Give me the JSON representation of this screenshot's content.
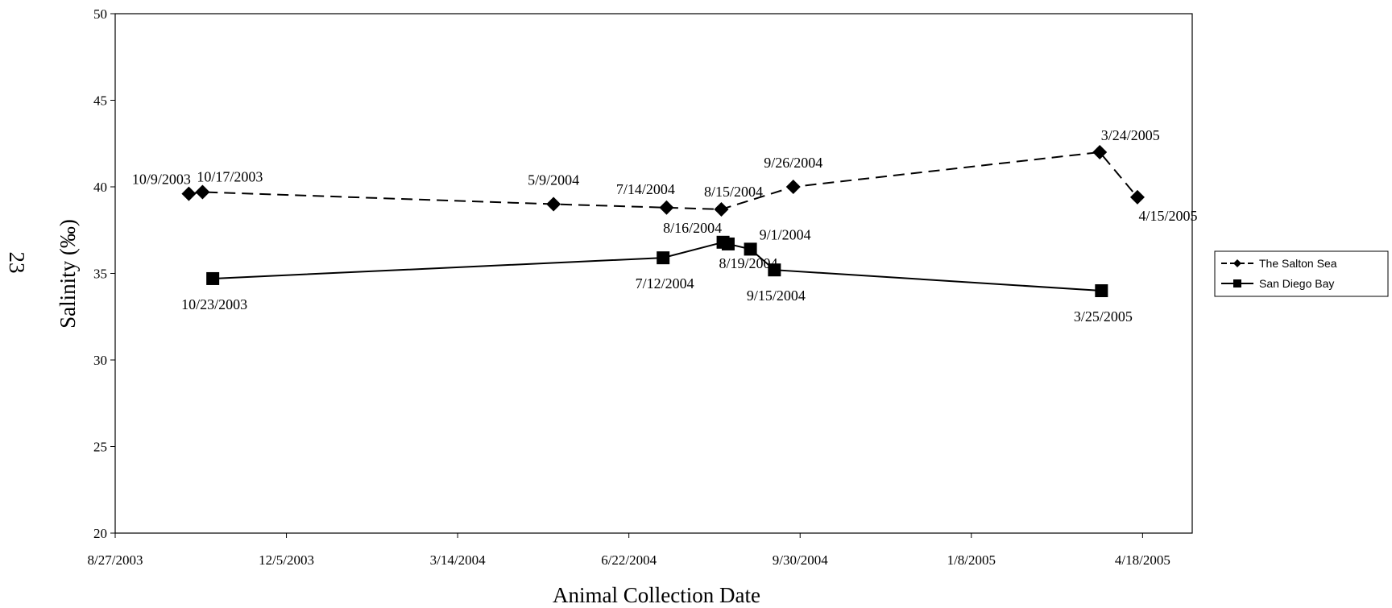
{
  "page_number": "23",
  "chart_data": {
    "type": "line",
    "title": "",
    "xlabel": "Animal Collection Date",
    "ylabel": "Salinity (‰)",
    "xlim": [
      "2003-08-27",
      "2005-05-17"
    ],
    "ylim": [
      20,
      50
    ],
    "x_ticks": [
      "2003-08-27",
      "2003-12-05",
      "2004-03-14",
      "2004-06-22",
      "2004-09-30",
      "2005-01-08",
      "2005-04-18"
    ],
    "x_tick_labels": [
      "8/27/2003",
      "12/5/2003",
      "3/14/2004",
      "6/22/2004",
      "9/30/2004",
      "1/8/2005",
      "4/18/2005"
    ],
    "y_ticks": [
      20,
      25,
      30,
      35,
      40,
      45,
      50
    ],
    "y_tick_labels": [
      "20",
      "25",
      "30",
      "35",
      "40",
      "45",
      "50"
    ],
    "grid": false,
    "legend_position": "right",
    "series": [
      {
        "name": "The Salton Sea",
        "line_style": "dashed",
        "marker": "diamond",
        "color": "#000000",
        "points": [
          {
            "date": "2003-10-09",
            "y": 39.6,
            "label": "10/9/2003"
          },
          {
            "date": "2003-10-17",
            "y": 39.7,
            "label": "10/17/2003"
          },
          {
            "date": "2004-05-09",
            "y": 39.0,
            "label": "5/9/2004"
          },
          {
            "date": "2004-07-14",
            "y": 38.8,
            "label": "7/14/2004"
          },
          {
            "date": "2004-08-15",
            "y": 38.7,
            "label": "8/15/2004"
          },
          {
            "date": "2004-09-26",
            "y": 40.0,
            "label": "9/26/2004"
          },
          {
            "date": "2005-03-24",
            "y": 42.0,
            "label": "3/24/2005"
          },
          {
            "date": "2005-04-15",
            "y": 39.4,
            "label": "4/15/2005"
          }
        ]
      },
      {
        "name": "San Diego Bay",
        "line_style": "solid",
        "marker": "square",
        "color": "#000000",
        "points": [
          {
            "date": "2003-10-23",
            "y": 34.7,
            "label": "10/23/2003"
          },
          {
            "date": "2004-07-12",
            "y": 35.9,
            "label": "7/12/2004"
          },
          {
            "date": "2004-08-16",
            "y": 36.8,
            "label": "8/16/2004"
          },
          {
            "date": "2004-08-19",
            "y": 36.7,
            "label": "8/19/2004"
          },
          {
            "date": "2004-09-01",
            "y": 36.4,
            "label": "9/1/2004"
          },
          {
            "date": "2004-09-15",
            "y": 35.2,
            "label": "9/15/2004"
          },
          {
            "date": "2005-03-25",
            "y": 34.0,
            "label": "3/25/2005"
          }
        ]
      }
    ]
  }
}
